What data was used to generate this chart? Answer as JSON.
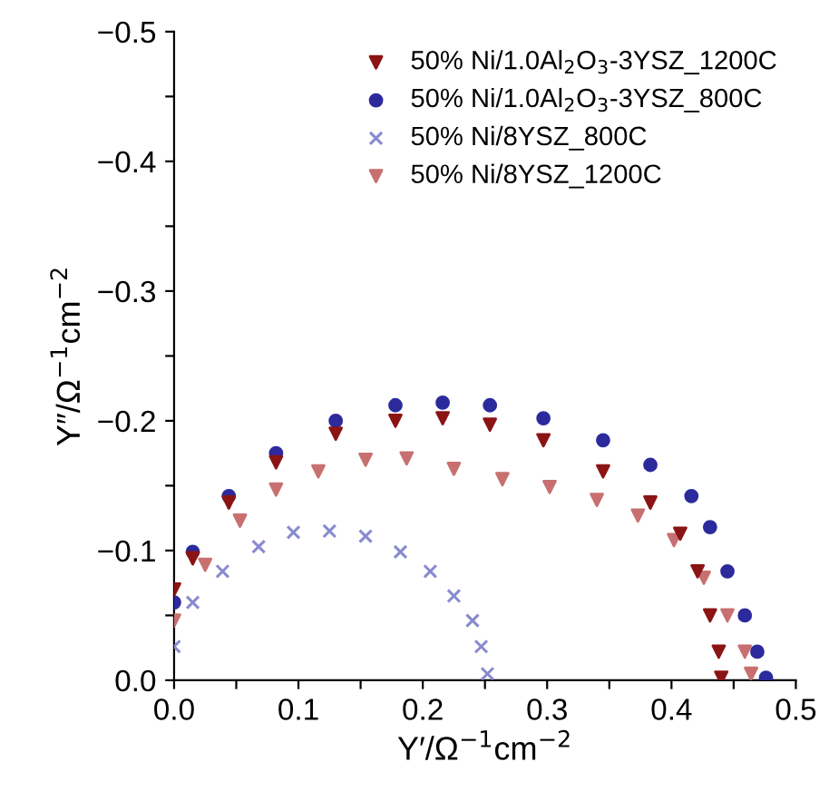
{
  "chart_data": {
    "type": "scatter",
    "xlabel": "Y′/Ω$^{−1}$cm$^{−2}$",
    "ylabel": "Y″/Ω$^{−1}$cm$^{−2}$",
    "xlim": [
      0,
      0.5
    ],
    "ylim": [
      0,
      -0.5
    ],
    "xticks": [
      {
        "value": 0,
        "label": "0.0"
      },
      {
        "value": 0.05,
        "label": null
      },
      {
        "value": 0.1,
        "label": "0.1"
      },
      {
        "value": 0.15,
        "label": null
      },
      {
        "value": 0.2,
        "label": "0.2"
      },
      {
        "value": 0.25,
        "label": null
      },
      {
        "value": 0.3,
        "label": "0.3"
      },
      {
        "value": 0.35,
        "label": null
      },
      {
        "value": 0.4,
        "label": "0.4"
      },
      {
        "value": 0.45,
        "label": null
      },
      {
        "value": 0.5,
        "label": "0.5"
      }
    ],
    "yticks": [
      {
        "value": 0,
        "label": "0.0"
      },
      {
        "value": -0.05,
        "label": null
      },
      {
        "value": -0.1,
        "label": "−0.1"
      },
      {
        "value": -0.15,
        "label": null
      },
      {
        "value": -0.2,
        "label": "−0.2"
      },
      {
        "value": -0.25,
        "label": null
      },
      {
        "value": -0.3,
        "label": "−0.3"
      },
      {
        "value": -0.35,
        "label": null
      },
      {
        "value": -0.4,
        "label": "−0.4"
      },
      {
        "value": -0.45,
        "label": null
      },
      {
        "value": -0.5,
        "label": "−0.5"
      }
    ],
    "legend": "top right",
    "series": [
      {
        "name": "50% Ni/1.0Al$_{2}$O$_{3}$-3YSZ_1200C",
        "color": "#8b1414",
        "marker": "triangle",
        "x": [
          0,
          0.015,
          0.044,
          0.082,
          0.13,
          0.178,
          0.216,
          0.254,
          0.297,
          0.345,
          0.383,
          0.407,
          0.421,
          0.431,
          0.438,
          0.44
        ],
        "values": [
          -0.07,
          -0.094,
          -0.137,
          -0.168,
          -0.19,
          -0.2,
          -0.202,
          -0.197,
          -0.185,
          -0.161,
          -0.137,
          -0.113,
          -0.084,
          -0.05,
          -0.022,
          -0.002
        ]
      },
      {
        "name": "50% Ni/1.0Al$_{2}$O$_{3}$-3YSZ_800C",
        "color": "#2c2a9c",
        "marker": "circle",
        "x": [
          0,
          0.015,
          0.044,
          0.082,
          0.13,
          0.178,
          0.216,
          0.254,
          0.297,
          0.345,
          0.383,
          0.416,
          0.431,
          0.445,
          0.459,
          0.469,
          0.476
        ],
        "values": [
          -0.06,
          -0.099,
          -0.142,
          -0.175,
          -0.2,
          -0.212,
          -0.214,
          -0.212,
          -0.202,
          -0.185,
          -0.166,
          -0.142,
          -0.118,
          -0.084,
          -0.05,
          -0.022,
          -0.002
        ]
      },
      {
        "name": "50% Ni/8YSZ_800C",
        "color": "#8a8ad0",
        "marker": "cross",
        "x": [
          0,
          0.015,
          0.039,
          0.068,
          0.096,
          0.125,
          0.154,
          0.182,
          0.206,
          0.225,
          0.24,
          0.247,
          0.252
        ],
        "values": [
          -0.026,
          -0.06,
          -0.084,
          -0.103,
          -0.114,
          -0.115,
          -0.111,
          -0.099,
          -0.084,
          -0.065,
          -0.046,
          -0.026,
          -0.005
        ]
      },
      {
        "name": "50% Ni/8YSZ_1200C",
        "color": "#c87070",
        "marker": "triangle",
        "x": [
          0,
          0.025,
          0.053,
          0.082,
          0.116,
          0.154,
          0.187,
          0.225,
          0.264,
          0.302,
          0.34,
          0.373,
          0.402,
          0.426,
          0.445,
          0.459,
          0.464
        ],
        "values": [
          -0.046,
          -0.089,
          -0.123,
          -0.147,
          -0.161,
          -0.17,
          -0.171,
          -0.163,
          -0.155,
          -0.149,
          -0.139,
          -0.127,
          -0.108,
          -0.079,
          -0.05,
          -0.022,
          -0.005
        ]
      }
    ]
  }
}
